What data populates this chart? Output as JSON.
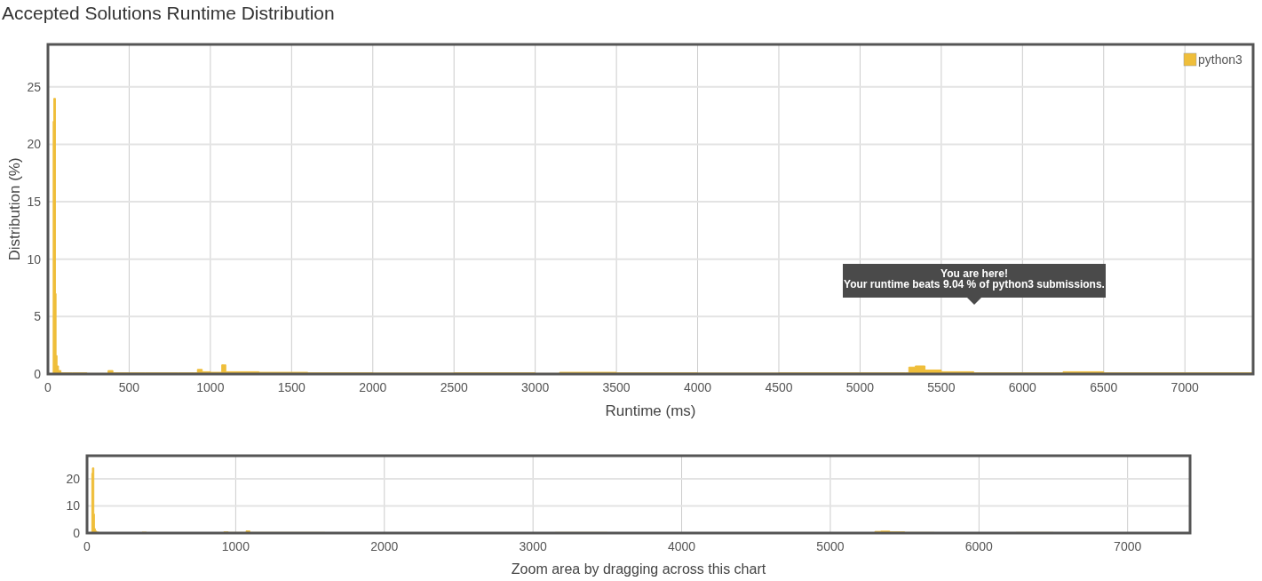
{
  "chart_data": [
    {
      "type": "area",
      "title": "Accepted Solutions Runtime Distribution",
      "xlabel": "Runtime (ms)",
      "ylabel": "Distribution (%)",
      "x": [
        30,
        32,
        36,
        42,
        46,
        50,
        56,
        65,
        80,
        150,
        240,
        340,
        370,
        400,
        600,
        800,
        900,
        920,
        950,
        1000,
        1060,
        1070,
        1085,
        1095,
        1300,
        1600,
        2000,
        2500,
        3000,
        3150,
        3500,
        4000,
        4500,
        5000,
        5280,
        5300,
        5340,
        5400,
        5500,
        5700,
        6000,
        6200,
        6250,
        6500,
        7000,
        7420
      ],
      "series": [
        {
          "name": "python3",
          "color": "#efbe3a",
          "values": [
            0,
            22,
            24,
            24,
            7,
            1.6,
            0.7,
            0.3,
            0.1,
            0.1,
            0.05,
            0.05,
            0.3,
            0.1,
            0.1,
            0.1,
            0.1,
            0.4,
            0.2,
            0.15,
            0.15,
            0.8,
            0.8,
            0.2,
            0.15,
            0.1,
            0.08,
            0.1,
            0.05,
            0.15,
            0.1,
            0.08,
            0.1,
            0.1,
            0.1,
            0.6,
            0.7,
            0.35,
            0.2,
            0.1,
            0.1,
            0.1,
            0.2,
            0.1,
            0.1,
            0.05
          ]
        }
      ],
      "xlim": [
        0,
        7420
      ],
      "ylim": [
        0,
        28.7
      ],
      "xticks": [
        0,
        500,
        1000,
        1500,
        2000,
        2500,
        3000,
        3500,
        4000,
        4500,
        5000,
        5500,
        6000,
        6500,
        7000
      ],
      "yticks": [
        0,
        5,
        10,
        15,
        20,
        25
      ],
      "grid": true,
      "legend": "top right",
      "annotations": [
        "You are here!\nYour runtime beats 9.04 % of python3 submissions."
      ]
    },
    {
      "type": "area",
      "xlabel": "Zoom area by dragging across this chart",
      "x": [
        30,
        32,
        36,
        42,
        46,
        50,
        56,
        65,
        80,
        150,
        240,
        340,
        370,
        400,
        600,
        800,
        900,
        920,
        950,
        1000,
        1060,
        1070,
        1085,
        1095,
        1300,
        1600,
        2000,
        2500,
        3000,
        3150,
        3500,
        4000,
        4500,
        5000,
        5280,
        5300,
        5340,
        5400,
        5500,
        5700,
        6000,
        6200,
        6250,
        6500,
        7000,
        7420
      ],
      "series": [
        {
          "color": "#efbe3a",
          "values": [
            0,
            22,
            24,
            24,
            7,
            1.6,
            0.7,
            0.3,
            0.1,
            0.1,
            0.1,
            0.1,
            0.3,
            0.1,
            0.1,
            0.1,
            0.1,
            0.4,
            0.2,
            0.2,
            0.2,
            0.8,
            0.8,
            0.2,
            0.2,
            0.1,
            0.1,
            0.1,
            0.1,
            0.2,
            0.1,
            0.1,
            0.1,
            0.1,
            0.1,
            0.6,
            0.7,
            0.4,
            0.2,
            0.1,
            0.1,
            0.1,
            0.2,
            0.1,
            0.1,
            0.1
          ]
        }
      ],
      "xlim": [
        0,
        7420
      ],
      "ylim": [
        0,
        28.5
      ],
      "xticks": [
        0,
        1000,
        2000,
        3000,
        4000,
        5000,
        6000,
        7000
      ],
      "yticks": [
        0,
        10,
        20
      ],
      "grid": true
    }
  ]
}
